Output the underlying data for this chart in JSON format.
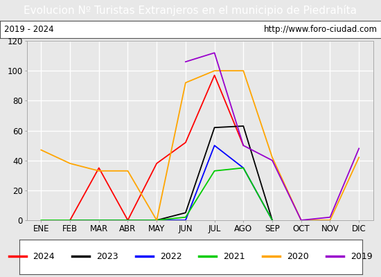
{
  "title": "Evolucion Nº Turistas Extranjeros en el municipio de Piedrahíta",
  "subtitle_left": "2019 - 2024",
  "subtitle_right": "http://www.foro-ciudad.com",
  "title_bg_color": "#4a86c8",
  "title_text_color": "#ffffff",
  "months": [
    "ENE",
    "FEB",
    "MAR",
    "ABR",
    "MAY",
    "JUN",
    "JUL",
    "AGO",
    "SEP",
    "OCT",
    "NOV",
    "DIC"
  ],
  "ylim": [
    0,
    120
  ],
  "yticks": [
    0,
    20,
    40,
    60,
    80,
    100,
    120
  ],
  "series": [
    {
      "label": "2024",
      "color": "#ff0000",
      "data": [
        null,
        0,
        35,
        0,
        38,
        52,
        97,
        50,
        null,
        null,
        null,
        null
      ]
    },
    {
      "label": "2023",
      "color": "#000000",
      "data": [
        null,
        0,
        0,
        0,
        0,
        5,
        62,
        63,
        0,
        null,
        null,
        null
      ]
    },
    {
      "label": "2022",
      "color": "#0000ff",
      "data": [
        null,
        0,
        0,
        0,
        0,
        0,
        50,
        35,
        0,
        null,
        null,
        null
      ]
    },
    {
      "label": "2021",
      "color": "#00cc00",
      "data": [
        0,
        0,
        0,
        0,
        0,
        2,
        33,
        35,
        0,
        null,
        null,
        null
      ]
    },
    {
      "label": "2020",
      "color": "#ffa500",
      "data": [
        47,
        38,
        33,
        33,
        0,
        92,
        100,
        100,
        42,
        0,
        0,
        42
      ]
    },
    {
      "label": "2019",
      "color": "#9900cc",
      "data": [
        null,
        null,
        null,
        null,
        null,
        106,
        112,
        50,
        40,
        0,
        2,
        48
      ]
    }
  ],
  "background_color": "#e8e8e8",
  "plot_bg_color": "#e8e8e8",
  "grid_color": "#ffffff",
  "legend_border_color": "#555555",
  "axis_text_color": "#000000",
  "subtitle_bg_color": "#ffffff",
  "title_fontsize": 11,
  "tick_fontsize": 8.5,
  "legend_fontsize": 9
}
